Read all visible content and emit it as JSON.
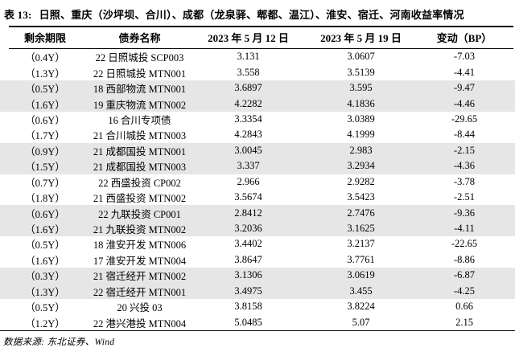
{
  "table": {
    "title_label": "表 13:",
    "title": "日照、重庆（沙坪坝、合川）、成都（龙泉驿、郫都、温江）、淮安、宿迁、河南收益率情况",
    "columns": [
      "剩余期限",
      "债券名称",
      "2023 年 5 月 12 日",
      "2023 年 5 月 19 日",
      "变动（BP）"
    ],
    "rows": [
      {
        "maturity": "（0.4Y）",
        "bond": "22 日照城投 SCP003",
        "yield_0512": "3.131",
        "yield_0519": "3.0607",
        "change_bp": "-7.03",
        "shaded": false
      },
      {
        "maturity": "（1.3Y）",
        "bond": "22 日照城投 MTN001",
        "yield_0512": "3.558",
        "yield_0519": "3.5139",
        "change_bp": "-4.41",
        "shaded": false
      },
      {
        "maturity": "（0.5Y）",
        "bond": "18 西部物流 MTN001",
        "yield_0512": "3.6897",
        "yield_0519": "3.595",
        "change_bp": "-9.47",
        "shaded": true
      },
      {
        "maturity": "（1.6Y）",
        "bond": "19 重庆物流 MTN002",
        "yield_0512": "4.2282",
        "yield_0519": "4.1836",
        "change_bp": "-4.46",
        "shaded": true
      },
      {
        "maturity": "（0.6Y）",
        "bond": "16 合川专项债",
        "yield_0512": "3.3354",
        "yield_0519": "3.0389",
        "change_bp": "-29.65",
        "shaded": false
      },
      {
        "maturity": "（1.7Y）",
        "bond": "21 合川城投 MTN003",
        "yield_0512": "4.2843",
        "yield_0519": "4.1999",
        "change_bp": "-8.44",
        "shaded": false
      },
      {
        "maturity": "（0.9Y）",
        "bond": "21 成都国投 MTN001",
        "yield_0512": "3.0045",
        "yield_0519": "2.983",
        "change_bp": "-2.15",
        "shaded": true
      },
      {
        "maturity": "（1.5Y）",
        "bond": "21 成都国投 MTN003",
        "yield_0512": "3.337",
        "yield_0519": "3.2934",
        "change_bp": "-4.36",
        "shaded": true
      },
      {
        "maturity": "（0.7Y）",
        "bond": "22 西盛投资 CP002",
        "yield_0512": "2.966",
        "yield_0519": "2.9282",
        "change_bp": "-3.78",
        "shaded": false
      },
      {
        "maturity": "（1.8Y）",
        "bond": "21 西盛投资 MTN002",
        "yield_0512": "3.5674",
        "yield_0519": "3.5423",
        "change_bp": "-2.51",
        "shaded": false
      },
      {
        "maturity": "（0.6Y）",
        "bond": "22 九联投资 CP001",
        "yield_0512": "2.8412",
        "yield_0519": "2.7476",
        "change_bp": "-9.36",
        "shaded": true
      },
      {
        "maturity": "（1.6Y）",
        "bond": "21 九联投资 MTN002",
        "yield_0512": "3.2036",
        "yield_0519": "3.1625",
        "change_bp": "-4.11",
        "shaded": true
      },
      {
        "maturity": "（0.5Y）",
        "bond": "18 淮安开发 MTN006",
        "yield_0512": "3.4402",
        "yield_0519": "3.2137",
        "change_bp": "-22.65",
        "shaded": false
      },
      {
        "maturity": "（1.6Y）",
        "bond": "17 淮安开发 MTN004",
        "yield_0512": "3.8647",
        "yield_0519": "3.7761",
        "change_bp": "-8.86",
        "shaded": false
      },
      {
        "maturity": "（0.3Y）",
        "bond": "21 宿迁经开 MTN002",
        "yield_0512": "3.1306",
        "yield_0519": "3.0619",
        "change_bp": "-6.87",
        "shaded": true
      },
      {
        "maturity": "（1.3Y）",
        "bond": "22 宿迁经开 MTN001",
        "yield_0512": "3.4975",
        "yield_0519": "3.455",
        "change_bp": "-4.25",
        "shaded": true
      },
      {
        "maturity": "（0.5Y）",
        "bond": "20 兴投 03",
        "yield_0512": "3.8158",
        "yield_0519": "3.8224",
        "change_bp": "0.66",
        "shaded": false
      },
      {
        "maturity": "（1.2Y）",
        "bond": "22 港兴港投 MTN004",
        "yield_0512": "5.0485",
        "yield_0519": "5.07",
        "change_bp": "2.15",
        "shaded": false
      }
    ]
  },
  "footer": {
    "source": "数据来源: 东北证券、Wind"
  }
}
